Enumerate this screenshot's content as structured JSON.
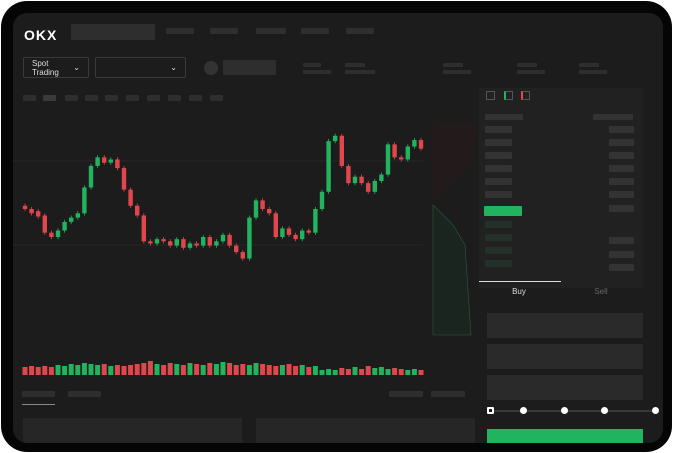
{
  "header": {
    "logo": "OKX"
  },
  "toolbar": {
    "market_select": "Spot Trading",
    "pair_select": ""
  },
  "trade": {
    "buy_tab": "Buy",
    "sell_tab": "Sell",
    "active_tab": "Buy",
    "leverage_steps": 5,
    "leverage_selected": 0
  },
  "colors": {
    "up": "#22b35e",
    "down": "#e0474c",
    "background": "#1c1c1c"
  },
  "icons": [
    "chevron-down-icon",
    "orderbook-both-icon",
    "orderbook-bids-icon",
    "orderbook-asks-icon"
  ],
  "chart_data": {
    "type": "candlestick",
    "candles": [
      [
        95,
        92
      ],
      [
        92,
        88
      ],
      [
        90,
        85
      ],
      [
        86,
        70
      ],
      [
        70,
        66
      ],
      [
        66,
        72
      ],
      [
        72,
        80
      ],
      [
        80,
        84
      ],
      [
        84,
        88
      ],
      [
        88,
        112
      ],
      [
        112,
        132
      ],
      [
        132,
        140
      ],
      [
        140,
        135
      ],
      [
        135,
        138
      ],
      [
        138,
        130
      ],
      [
        130,
        110
      ],
      [
        110,
        95
      ],
      [
        95,
        86
      ],
      [
        86,
        62
      ],
      [
        62,
        60
      ],
      [
        60,
        64
      ],
      [
        64,
        62
      ],
      [
        62,
        58
      ],
      [
        58,
        64
      ],
      [
        64,
        56
      ],
      [
        56,
        60
      ],
      [
        60,
        58
      ],
      [
        58,
        66
      ],
      [
        66,
        58
      ],
      [
        58,
        62
      ],
      [
        62,
        68
      ],
      [
        68,
        58
      ],
      [
        58,
        52
      ],
      [
        52,
        46
      ],
      [
        46,
        84
      ],
      [
        84,
        100
      ],
      [
        100,
        92
      ],
      [
        92,
        88
      ],
      [
        88,
        66
      ],
      [
        66,
        74
      ],
      [
        74,
        68
      ],
      [
        68,
        64
      ],
      [
        64,
        72
      ],
      [
        72,
        70
      ],
      [
        70,
        92
      ],
      [
        92,
        108
      ],
      [
        108,
        155
      ],
      [
        155,
        160
      ],
      [
        160,
        132
      ],
      [
        132,
        116
      ],
      [
        116,
        122
      ],
      [
        122,
        116
      ],
      [
        116,
        108
      ],
      [
        108,
        118
      ],
      [
        118,
        124
      ],
      [
        124,
        152
      ],
      [
        152,
        140
      ],
      [
        140,
        138
      ],
      [
        138,
        150
      ],
      [
        150,
        156
      ],
      [
        156,
        148
      ]
    ],
    "volumes": [
      8,
      9,
      8,
      9,
      8,
      10,
      9,
      11,
      10,
      12,
      11,
      10,
      11,
      9,
      10,
      9,
      10,
      11,
      12,
      14,
      11,
      10,
      12,
      11,
      10,
      12,
      11,
      10,
      12,
      11,
      13,
      12,
      10,
      11,
      10,
      12,
      11,
      10,
      9,
      10,
      11,
      9,
      10,
      8,
      9,
      5,
      6,
      5,
      7,
      6,
      8,
      6,
      9,
      7,
      8,
      6,
      7,
      6,
      5,
      6,
      5
    ]
  }
}
